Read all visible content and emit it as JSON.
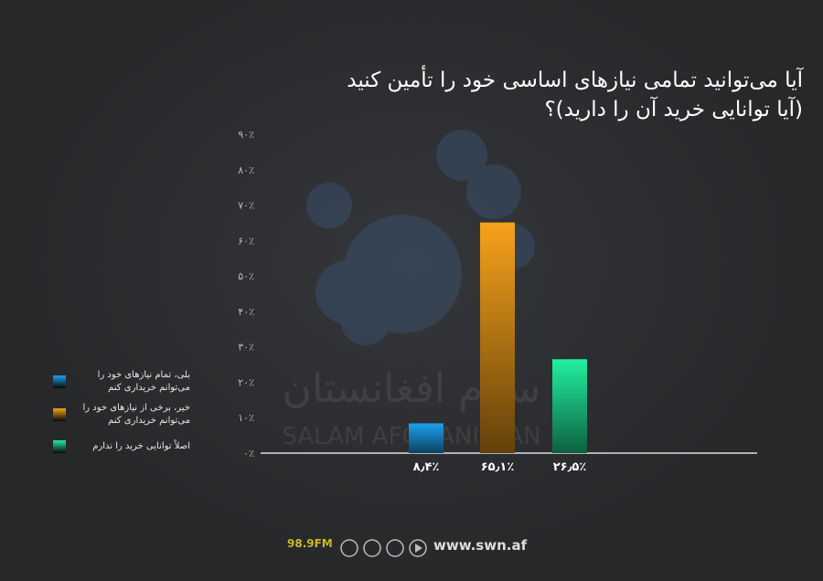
{
  "chart_data": {
    "type": "bar",
    "title": [
      "آیا می‌توانید تمامی نیازهای اساسی خود را تأمین کنید",
      "(آیا توانایی خرید آن را دارید)؟"
    ],
    "series": [
      {
        "name": "بلی، تمام نیازهای خود را می‌توانم خریداری کنم",
        "color": "#1ba1f0",
        "values": [
          8.4
        ],
        "value_labels": [
          "۸٫۴٪"
        ]
      },
      {
        "name": "خیر، برخی از نیازهای خود را می‌توانم خریداری کنم",
        "color": "#f7a21b",
        "values": [
          65.1
        ],
        "value_labels": [
          "۶۵٫۱٪"
        ]
      },
      {
        "name": "اصلاً توانایی خرید را ندارم",
        "color": "#22f0a0",
        "values": [
          26.5
        ],
        "value_labels": [
          "۲۶٫۵٪"
        ]
      }
    ],
    "ylim": [
      0,
      90
    ],
    "yticks": [
      {
        "value": 0,
        "label": "۰٪"
      },
      {
        "value": 10,
        "label": "۱۰٪"
      },
      {
        "value": 20,
        "label": "۲۰٪"
      },
      {
        "value": 30,
        "label": "۳۰٪"
      },
      {
        "value": 40,
        "label": "۴۰٪"
      },
      {
        "value": 50,
        "label": "۵۰٪"
      },
      {
        "value": 60,
        "label": "۶۰٪"
      },
      {
        "value": 70,
        "label": "۷۰٪"
      },
      {
        "value": 80,
        "label": "۸۰٪"
      },
      {
        "value": 90,
        "label": "۹۰٪"
      }
    ],
    "grid": false,
    "watermark": [
      "سلام افغانستان",
      "SALAM AFGHANISTAN"
    ],
    "footer": {
      "frequency": "98.9FM",
      "website": "www.swn.af"
    }
  }
}
